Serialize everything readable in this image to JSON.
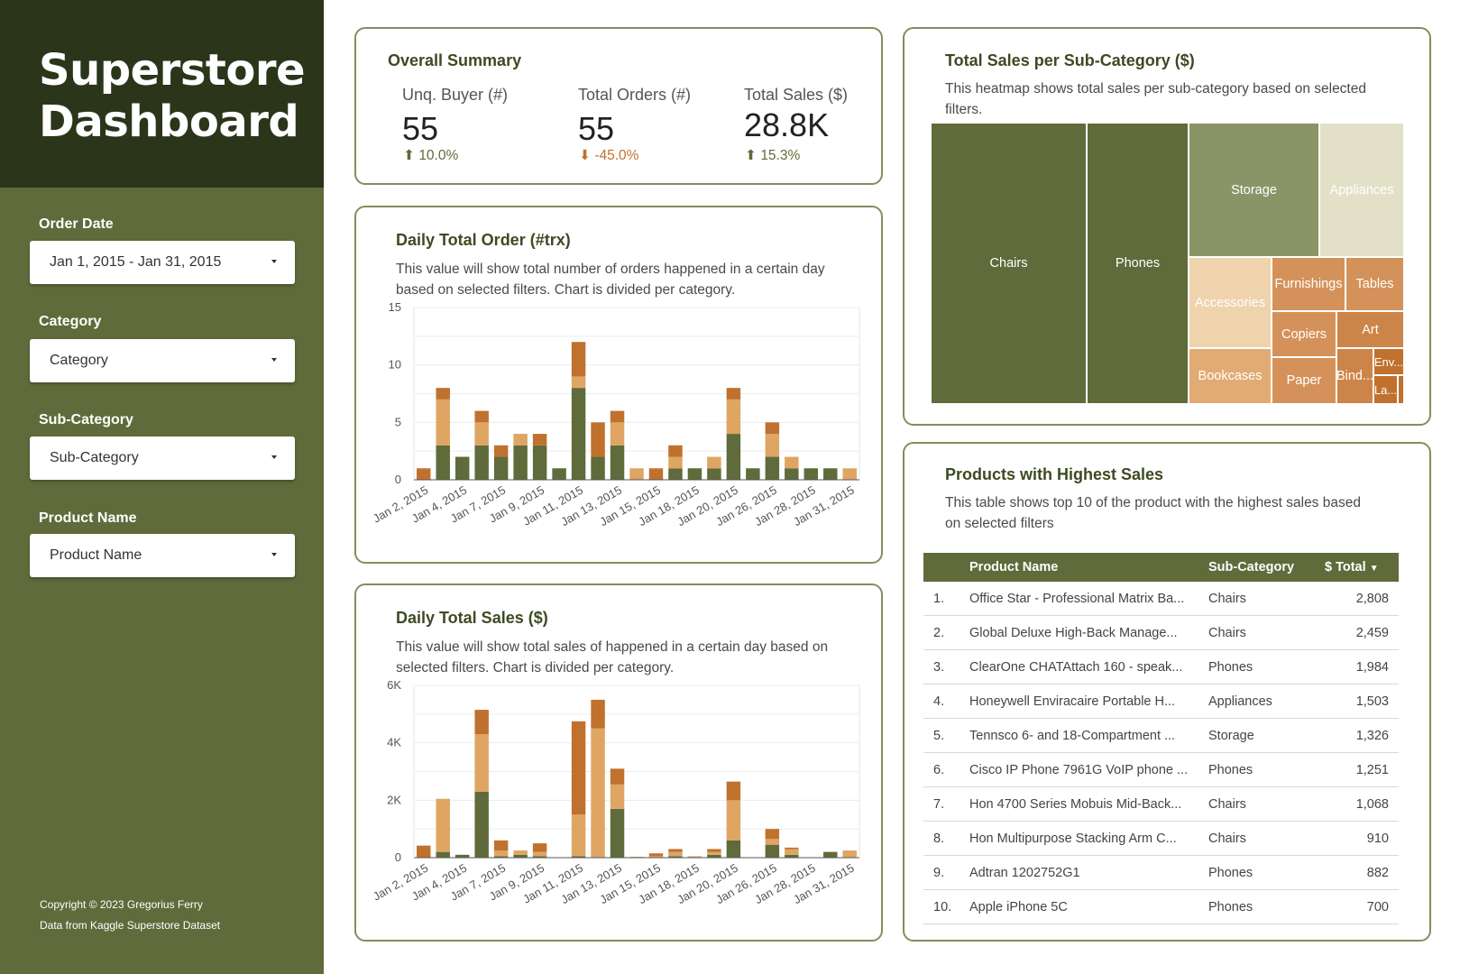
{
  "sidebar": {
    "title": "Superstore\nDashboard",
    "filters": [
      {
        "label": "Order Date",
        "value": "Jan 1, 2015 - Jan 31, 2015"
      },
      {
        "label": "Category",
        "value": "Category"
      },
      {
        "label": "Sub-Category",
        "value": "Sub-Category"
      },
      {
        "label": "Product Name",
        "value": "Product Name"
      }
    ],
    "footer": [
      "Copyright © 2023 Gregorius Ferry",
      "Data from Kaggle Superstore Dataset"
    ]
  },
  "summary": {
    "title": "Overall  Summary",
    "kpis": [
      {
        "label": "Unq. Buyer (#)",
        "value": "55",
        "delta": "10.0%",
        "direction": "up",
        "color": "#5f6b3a"
      },
      {
        "label": "Total Orders (#)",
        "value": "55",
        "delta": "-45.0%",
        "direction": "down",
        "color": "#c0712e"
      },
      {
        "label": "Total Sales ($)",
        "value": "28.8K",
        "delta": "15.3%",
        "direction": "up",
        "color": "#5f6b3a"
      }
    ]
  },
  "colors": {
    "accent_dark": "#2b351a",
    "accent": "#5f6b3a",
    "series_green": "#5f6b3a",
    "series_tan": "#dea563",
    "series_orange": "#c0712e"
  },
  "chart_data": [
    {
      "type": "bar",
      "stacked": true,
      "title": "Daily Total Order (#trx)",
      "description": "This value will show total number of orders happened in a certain day based on selected filters. Chart is divided per category.",
      "tick_labels": [
        "Jan 2, 2015",
        "Jan 4, 2015",
        "Jan 7, 2015",
        "Jan 9, 2015",
        "Jan 11, 2015",
        "Jan 13, 2015",
        "Jan 15, 2015",
        "Jan 18, 2015",
        "Jan 20, 2015",
        "Jan 26, 2015",
        "Jan 28, 2015",
        "Jan 31, 2015"
      ],
      "ylim": [
        0,
        15
      ],
      "yticks": [
        "0",
        "5",
        "10",
        "15"
      ],
      "grid": true,
      "series": [
        {
          "color": "#5f6b3a",
          "values": [
            0,
            3,
            2,
            3,
            2,
            3,
            3,
            1,
            8,
            2,
            3,
            0,
            0,
            1,
            1,
            1,
            4,
            1,
            2,
            1,
            1,
            1,
            0
          ]
        },
        {
          "color": "#dea563",
          "values": [
            0,
            4,
            0,
            2,
            0,
            1,
            0,
            0,
            1,
            0,
            2,
            1,
            0,
            1,
            0,
            1,
            3,
            0,
            2,
            1,
            0,
            0,
            1
          ]
        },
        {
          "color": "#c0712e",
          "values": [
            1,
            1,
            0,
            1,
            1,
            0,
            1,
            0,
            3,
            3,
            1,
            0,
            1,
            1,
            0,
            0,
            1,
            0,
            1,
            0,
            0,
            0,
            0
          ]
        }
      ]
    },
    {
      "type": "bar",
      "stacked": true,
      "title": "Daily Total Sales ($)",
      "description": "This value will show total sales of happened in a certain day based on selected filters. Chart is divided per category.",
      "tick_labels": [
        "Jan 2, 2015",
        "Jan 4, 2015",
        "Jan 7, 2015",
        "Jan 9, 2015",
        "Jan 11, 2015",
        "Jan 13, 2015",
        "Jan 15, 2015",
        "Jan 18, 2015",
        "Jan 20, 2015",
        "Jan 26, 2015",
        "Jan 28, 2015",
        "Jan 31, 2015"
      ],
      "ylim": [
        0,
        6000
      ],
      "yticks": [
        "0",
        "2K",
        "4K",
        "6K"
      ],
      "grid": true,
      "series": [
        {
          "color": "#5f6b3a",
          "values": [
            0,
            200,
            100,
            2300,
            50,
            100,
            50,
            0,
            50,
            0,
            1700,
            0,
            0,
            50,
            0,
            100,
            600,
            0,
            450,
            100,
            0,
            200,
            0
          ]
        },
        {
          "color": "#dea563",
          "values": [
            0,
            1850,
            0,
            2000,
            200,
            150,
            150,
            0,
            1450,
            4500,
            850,
            30,
            50,
            150,
            50,
            100,
            1400,
            0,
            200,
            200,
            0,
            0,
            250
          ]
        },
        {
          "color": "#c0712e",
          "values": [
            420,
            0,
            0,
            850,
            350,
            0,
            300,
            0,
            3250,
            1000,
            550,
            0,
            100,
            100,
            0,
            100,
            650,
            0,
            350,
            50,
            0,
            0,
            0
          ]
        }
      ]
    },
    {
      "type": "heatmap",
      "subtype": "treemap",
      "title": "Total Sales per Sub-Category ($)",
      "description": "This heatmap shows total sales per sub-category based on selected filters.",
      "cells": [
        {
          "label": "Chairs",
          "color": "#5f6b3a"
        },
        {
          "label": "Phones",
          "color": "#5f6b3a"
        },
        {
          "label": "Storage",
          "color": "#8a9466"
        },
        {
          "label": "Appliances",
          "color": "#e2e1c8"
        },
        {
          "label": "Accessories",
          "color": "#eed3ac"
        },
        {
          "label": "Furnishings",
          "color": "#d4925a"
        },
        {
          "label": "Tables",
          "color": "#d4925a"
        },
        {
          "label": "Copiers",
          "color": "#d4925a"
        },
        {
          "label": "Art",
          "color": "#cc8448"
        },
        {
          "label": "Bookcases",
          "color": "#e2ab74"
        },
        {
          "label": "Paper",
          "color": "#d4925a"
        },
        {
          "label": "Bind...",
          "color": "#cc8448"
        },
        {
          "label": "Env...",
          "color": "#c0712e"
        },
        {
          "label": "La...",
          "color": "#c0712e"
        },
        {
          "label": "",
          "color": "#c0712e"
        }
      ]
    }
  ],
  "products_table": {
    "title": "Products with Highest Sales",
    "description": "This table shows top 10 of the product with the highest sales based on selected filters",
    "columns": [
      "Product Name",
      "Sub-Category",
      "$ Total"
    ],
    "rows": [
      {
        "rank": "1.",
        "name": "Office Star - Professional Matrix Ba...",
        "sub": "Chairs",
        "total": "2,808"
      },
      {
        "rank": "2.",
        "name": "Global Deluxe High-Back Manage...",
        "sub": "Chairs",
        "total": "2,459"
      },
      {
        "rank": "3.",
        "name": "ClearOne CHATAttach 160 - speak...",
        "sub": "Phones",
        "total": "1,984"
      },
      {
        "rank": "4.",
        "name": "Honeywell Enviracaire Portable H...",
        "sub": "Appliances",
        "total": "1,503"
      },
      {
        "rank": "5.",
        "name": "Tennsco 6- and 18-Compartment ...",
        "sub": "Storage",
        "total": "1,326"
      },
      {
        "rank": "6.",
        "name": "Cisco IP Phone 7961G VoIP phone ...",
        "sub": "Phones",
        "total": "1,251"
      },
      {
        "rank": "7.",
        "name": "Hon 4700 Series Mobuis Mid-Back...",
        "sub": "Chairs",
        "total": "1,068"
      },
      {
        "rank": "8.",
        "name": "Hon Multipurpose Stacking Arm C...",
        "sub": "Chairs",
        "total": "910"
      },
      {
        "rank": "9.",
        "name": "Adtran 1202752G1",
        "sub": "Phones",
        "total": "882"
      },
      {
        "rank": "10.",
        "name": "Apple iPhone 5C",
        "sub": "Phones",
        "total": "700"
      }
    ]
  }
}
